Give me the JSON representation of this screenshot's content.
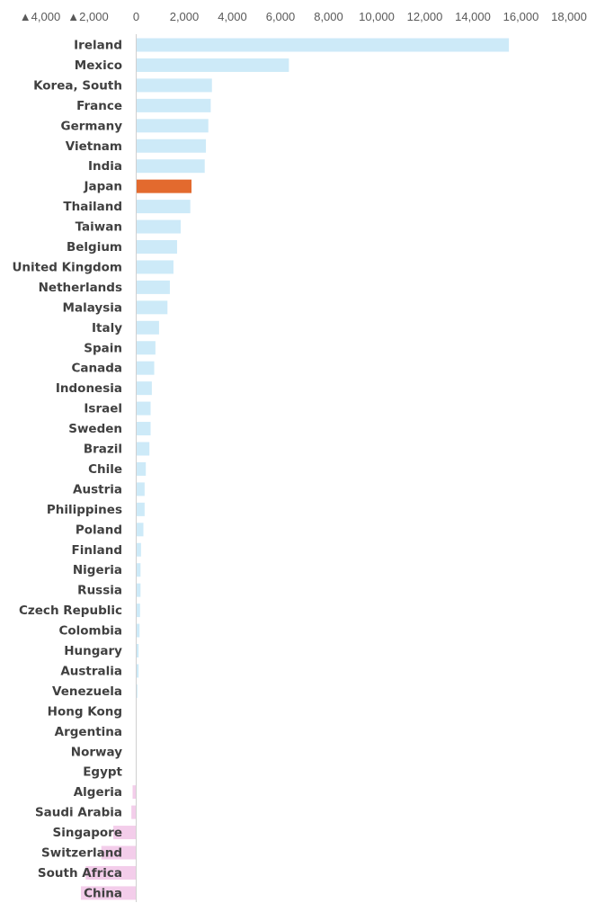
{
  "chart_data": {
    "type": "bar",
    "orientation": "horizontal",
    "grid": false,
    "xlim": [
      -4000,
      18000
    ],
    "x_ticks": [
      -4000,
      -2000,
      0,
      2000,
      4000,
      6000,
      8000,
      10000,
      12000,
      14000,
      16000,
      18000
    ],
    "tick_labels": [
      "▲4,000",
      "▲2,000",
      "0",
      "2,000",
      "4,000",
      "6,000",
      "8,000",
      "10,000",
      "12,000",
      "14,000",
      "16,000",
      "18,000"
    ],
    "categories": [
      "Ireland",
      "Mexico",
      "Korea, South",
      "France",
      "Germany",
      "Vietnam",
      "India",
      "Japan",
      "Thailand",
      "Taiwan",
      "Belgium",
      "United Kingdom",
      "Netherlands",
      "Malaysia",
      "Italy",
      "Spain",
      "Canada",
      "Indonesia",
      "Israel",
      "Sweden",
      "Brazil",
      "Chile",
      "Austria",
      "Philippines",
      "Poland",
      "Finland",
      "Nigeria",
      "Russia",
      "Czech Republic",
      "Colombia",
      "Hungary",
      "Australia",
      "Venezuela",
      "Hong Kong",
      "Argentina",
      "Norway",
      "Egypt",
      "Algeria",
      "Saudi Arabia",
      "Singapore",
      "Switzerland",
      "South Africa",
      "China"
    ],
    "values": [
      15500,
      6350,
      3150,
      3100,
      3000,
      2900,
      2850,
      2300,
      2250,
      1850,
      1700,
      1550,
      1400,
      1300,
      950,
      800,
      750,
      650,
      600,
      600,
      550,
      400,
      350,
      350,
      300,
      200,
      180,
      180,
      160,
      140,
      100,
      100,
      50,
      0,
      0,
      0,
      0,
      -150,
      -200,
      -950,
      -1450,
      -2100,
      -2300
    ],
    "highlight": "Japan",
    "colors": {
      "positive": "#cdeaf8",
      "negative": "#f3cdea",
      "highlight": "#e36a2e"
    }
  }
}
